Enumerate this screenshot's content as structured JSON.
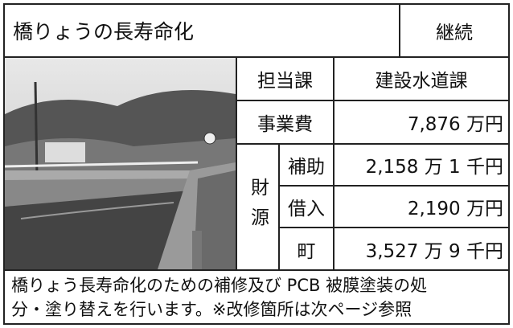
{
  "header": {
    "title": "橋りょうの長寿命化",
    "status": "継続"
  },
  "table": {
    "department_label": "担当課",
    "department": "建設水道課",
    "cost_label": "事業費",
    "cost": "7,876 万円",
    "funding_label": "財源",
    "funding": [
      {
        "label": "補助",
        "amount": "2,158 万 1 千円"
      },
      {
        "label": "借入",
        "amount": "2,190 万円"
      },
      {
        "label": "町",
        "amount": "3,527 万 9 千円"
      }
    ]
  },
  "description": [
    "橋りょう長寿命化のための補修及び PCB 被膜塗装の処",
    "分・塗り替えを行います。※改修箇所は次ページ参照"
  ]
}
